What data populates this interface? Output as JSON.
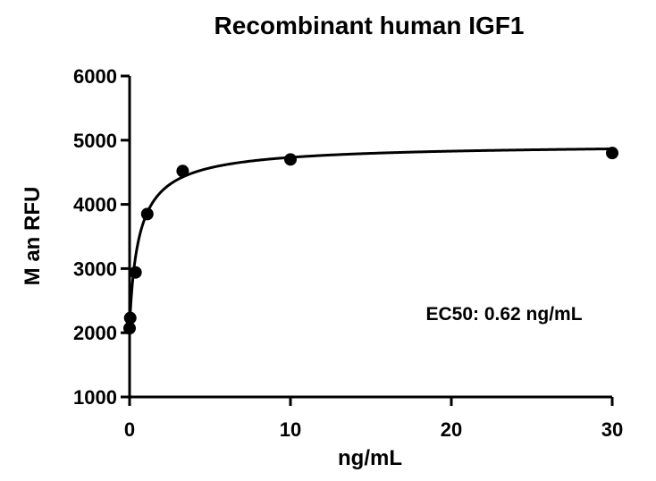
{
  "chart_data": {
    "type": "scatter",
    "title": "Recombinant human IGF1",
    "xlabel": "ng/mL",
    "ylabel": "M  an RFU",
    "annotation": "EC50: 0.62 ng/mL",
    "xlim": [
      0,
      30
    ],
    "ylim": [
      1000,
      6000
    ],
    "x_ticks": [
      0,
      10,
      20,
      30
    ],
    "y_ticks": [
      1000,
      2000,
      3000,
      4000,
      5000,
      6000
    ],
    "grid": false,
    "series": [
      {
        "points": [
          {
            "x": 0.0,
            "y": 2070
          },
          {
            "x": 0.04,
            "y": 2230
          },
          {
            "x": 0.37,
            "y": 2940
          },
          {
            "x": 1.1,
            "y": 3850
          },
          {
            "x": 3.3,
            "y": 4520
          },
          {
            "x": 10,
            "y": 4700
          },
          {
            "x": 30,
            "y": 4800
          }
        ],
        "fit": {
          "model": "4PL",
          "bottom": 2070,
          "top": 4950,
          "ec50": 0.62,
          "hill": 0.9
        }
      }
    ],
    "colors": {
      "marker": "#000000",
      "line": "#000000"
    }
  }
}
